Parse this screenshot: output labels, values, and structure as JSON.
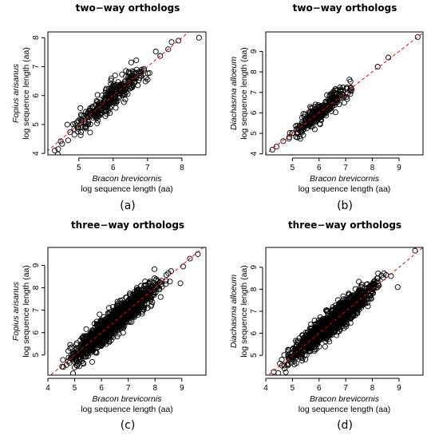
{
  "chart_data": [
    {
      "type": "scatter",
      "panel_label": "(a)",
      "title": "two−way orthologs",
      "xlabel_species": "Bracon brevicornis",
      "xlabel": "log sequence length (aa)",
      "ylabel_species": "Fopius arisanus",
      "ylabel": "log sequence length (aa)",
      "xlim": [
        4.1,
        8.7
      ],
      "ylim": [
        3.95,
        8.2
      ],
      "xticks": [
        5,
        6,
        7,
        8
      ],
      "yticks": [
        4,
        5,
        6,
        7,
        8
      ],
      "reference_line": {
        "type": "y=x",
        "style": "dashed",
        "color": "#ff0000"
      },
      "point_color": "#000000",
      "points": {
        "n": 330,
        "x_min": 4.25,
        "x_max": 7.5,
        "slope": 1.0,
        "intercept": 0.0,
        "sd": 0.22,
        "seed": 11,
        "extra": [
          [
            8.5,
            8.0
          ],
          [
            7.9,
            7.9
          ],
          [
            7.7,
            7.85
          ],
          [
            7.6,
            7.6
          ],
          [
            4.3,
            4.1
          ],
          [
            4.4,
            4.15
          ]
        ]
      }
    },
    {
      "type": "scatter",
      "panel_label": "(b)",
      "title": "two−way orthologs",
      "xlabel_species": "Bracon brevicornis",
      "xlabel": "log sequence length (aa)",
      "ylabel_species": "Diachasma alloeum",
      "ylabel": "log sequence length (aa)",
      "xlim": [
        4.0,
        9.9
      ],
      "ylim": [
        3.95,
        9.95
      ],
      "xticks": [
        5,
        6,
        7,
        8,
        9
      ],
      "yticks": [
        4,
        5,
        6,
        7,
        8,
        9
      ],
      "reference_line": {
        "type": "y=x",
        "style": "dashed",
        "color": "#ff0000"
      },
      "point_color": "#000000",
      "points": {
        "n": 330,
        "x_min": 4.5,
        "x_max": 7.6,
        "slope": 1.0,
        "intercept": 0.0,
        "sd": 0.22,
        "seed": 23,
        "extra": [
          [
            9.7,
            9.7
          ],
          [
            8.6,
            8.7
          ],
          [
            8.2,
            8.25
          ],
          [
            4.25,
            4.2
          ],
          [
            4.4,
            4.35
          ]
        ]
      }
    },
    {
      "type": "scatter",
      "panel_label": "(c)",
      "title": "three−way orthologs",
      "xlabel_species": "Bracon brevicornis",
      "xlabel": "log sequence length (aa)",
      "ylabel_species": "Fopius arisanus",
      "ylabel": "log sequence length (aa)",
      "xlim": [
        4.0,
        9.9
      ],
      "ylim": [
        4.1,
        9.8
      ],
      "xticks": [
        4,
        5,
        6,
        7,
        8,
        9
      ],
      "yticks": [
        5,
        6,
        7,
        8,
        9
      ],
      "reference_line": {
        "type": "y=x",
        "style": "dashed",
        "color": "#ff0000"
      },
      "point_color": "#000000",
      "points": {
        "n": 1500,
        "x_min": 4.3,
        "x_max": 8.7,
        "slope": 1.0,
        "intercept": 0.0,
        "sd": 0.27,
        "seed": 37,
        "extra": [
          [
            9.6,
            9.5
          ],
          [
            9.3,
            9.3
          ],
          [
            9.05,
            8.95
          ],
          [
            8.95,
            8.2
          ],
          [
            8.6,
            8.75
          ]
        ]
      }
    },
    {
      "type": "scatter",
      "panel_label": "(d)",
      "title": "three−way orthologs",
      "xlabel_species": "Bracon brevicornis",
      "xlabel": "log sequence length (aa)",
      "ylabel_species": "Diachasma alloeum",
      "ylabel": "log sequence length (aa)",
      "xlim": [
        4.0,
        9.9
      ],
      "ylim": [
        4.1,
        9.9
      ],
      "xticks": [
        4,
        5,
        6,
        7,
        8,
        9
      ],
      "yticks": [
        5,
        6,
        7,
        8,
        9
      ],
      "reference_line": {
        "type": "y=x",
        "style": "dashed",
        "color": "#ff0000"
      },
      "point_color": "#000000",
      "points": {
        "n": 1500,
        "x_min": 4.3,
        "x_max": 8.7,
        "slope": 1.0,
        "intercept": 0.0,
        "sd": 0.26,
        "seed": 51,
        "extra": [
          [
            9.6,
            9.75
          ],
          [
            8.95,
            8.1
          ],
          [
            8.7,
            8.6
          ],
          [
            4.3,
            4.25
          ]
        ]
      }
    }
  ]
}
